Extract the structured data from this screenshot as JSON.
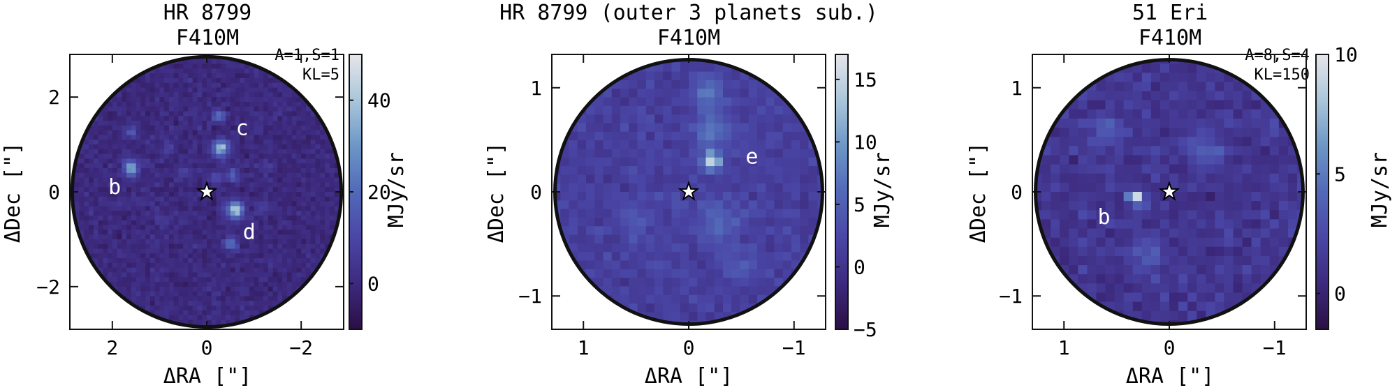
{
  "figure": {
    "panels": [
      {
        "title_line1": "HR 8799",
        "title_line2": "F410M",
        "annotation_lines": [
          "A=1,S=1",
          "KL=5"
        ],
        "xlabel": "ΔRA [\"]",
        "ylabel": "ΔDec [\"]",
        "colorbar_label": "MJy/sr",
        "planet_labels": [
          {
            "text": "b",
            "x": 1.95,
            "y": 0.1
          },
          {
            "text": "c",
            "x": -0.75,
            "y": 1.35
          },
          {
            "text": "d",
            "x": -0.9,
            "y": -0.85
          }
        ]
      },
      {
        "title_line1": "HR 8799 (outer 3 planets sub.)",
        "title_line2": "F410M",
        "annotation_lines": [],
        "xlabel": "ΔRA [\"]",
        "ylabel": "ΔDec [\"]",
        "colorbar_label": "MJy/sr",
        "planet_labels": [
          {
            "text": "e",
            "x": -0.6,
            "y": 0.34
          }
        ]
      },
      {
        "title_line1": "51 Eri",
        "title_line2": "F410M",
        "annotation_lines": [
          "A=8,S=4",
          "KL=150"
        ],
        "xlabel": "ΔRA [\"]",
        "ylabel": "ΔDec [\"]",
        "colorbar_label": "MJy/sr",
        "planet_labels": [
          {
            "text": "b",
            "x": 0.62,
            "y": -0.24
          }
        ]
      }
    ],
    "colors": {
      "cmap": [
        "#2a0f44",
        "#3d2a7e",
        "#4a46a6",
        "#5269b8",
        "#6d96c6",
        "#aac6da",
        "#e6e6ea"
      ],
      "background": "#3c2a7c",
      "star_fill": "#ffffff",
      "star_stroke": "#000000"
    }
  },
  "chart_data": [
    {
      "type": "heatmap",
      "title": "HR 8799 F410M",
      "xlabel": "ΔRA [\"]",
      "ylabel": "ΔDec [\"]",
      "xlim": [
        2.9,
        -2.9
      ],
      "ylim": [
        -2.9,
        2.9
      ],
      "xticks": [
        2,
        0,
        -2
      ],
      "xticklabels": [
        "2",
        "0",
        "−2"
      ],
      "yticks": [
        -2,
        0,
        2
      ],
      "yticklabels": [
        "−2",
        "0",
        "2"
      ],
      "x_inverted": true,
      "field_radius": 2.85,
      "colorbar": {
        "label": "MJy/sr",
        "range": [
          -10,
          50
        ],
        "ticks": [
          0,
          20,
          40
        ],
        "ticklabels": [
          "0",
          "20",
          "40"
        ]
      },
      "background_level": 0,
      "noise_level": 4,
      "seed": 11,
      "star": {
        "x": 0,
        "y": 0
      },
      "sources": [
        {
          "label": "b",
          "x": 1.6,
          "y": 0.5,
          "peak": 35,
          "sigma": 0.11
        },
        {
          "label": "c",
          "x": -0.3,
          "y": 0.92,
          "peak": 40,
          "sigma": 0.12
        },
        {
          "label": "d",
          "x": -0.6,
          "y": -0.38,
          "peak": 46,
          "sigma": 0.12
        },
        {
          "label": "",
          "x": -0.25,
          "y": 1.6,
          "peak": 22,
          "sigma": 0.09
        },
        {
          "label": "",
          "x": -0.55,
          "y": 0.35,
          "peak": 20,
          "sigma": 0.09
        },
        {
          "label": "",
          "x": -0.5,
          "y": -1.1,
          "peak": 22,
          "sigma": 0.1
        },
        {
          "label": "",
          "x": 1.6,
          "y": 1.25,
          "peak": 14,
          "sigma": 0.09
        },
        {
          "label": "",
          "x": -0.2,
          "y": 0.3,
          "peak": 14,
          "sigma": 0.09
        },
        {
          "label": "",
          "x": 0.5,
          "y": 0.4,
          "peak": 10,
          "sigma": 0.1
        },
        {
          "label": "",
          "x": -1.3,
          "y": 0.5,
          "peak": 8,
          "sigma": 0.1
        },
        {
          "label": "",
          "x": -1.2,
          "y": -0.3,
          "peak": 9,
          "sigma": 0.1
        },
        {
          "label": "",
          "x": 1.0,
          "y": -0.6,
          "peak": 7,
          "sigma": 0.1
        },
        {
          "label": "",
          "x": 0.8,
          "y": 0.9,
          "peak": 8,
          "sigma": 0.1
        }
      ]
    },
    {
      "type": "heatmap",
      "title": "HR 8799 (outer 3 planets sub.) F410M",
      "xlabel": "ΔRA [\"]",
      "ylabel": "ΔDec [\"]",
      "xlim": [
        1.3,
        -1.3
      ],
      "ylim": [
        -1.32,
        1.32
      ],
      "xticks": [
        1,
        0,
        -1
      ],
      "xticklabels": [
        "1",
        "0",
        "−1"
      ],
      "yticks": [
        -1,
        0,
        1
      ],
      "yticklabels": [
        "−1",
        "0",
        "1"
      ],
      "x_inverted": true,
      "field_radius": 1.27,
      "colorbar": {
        "label": "MJy/sr",
        "range": [
          -5,
          17
        ],
        "ticks": [
          -5,
          0,
          5,
          10,
          15
        ],
        "ticklabels": [
          "−5",
          "0",
          "5",
          "10",
          "15"
        ]
      },
      "background_level": 1.5,
      "noise_level": 1.6,
      "seed": 23,
      "star": {
        "x": 0,
        "y": 0
      },
      "sources": [
        {
          "label": "e",
          "x": -0.22,
          "y": 0.3,
          "peak": 15,
          "sigma": 0.06
        },
        {
          "label": "",
          "x": -0.2,
          "y": 0.95,
          "peak": 6,
          "sigma": 0.1
        },
        {
          "label": "",
          "x": -0.22,
          "y": 0.6,
          "peak": 5,
          "sigma": 0.12
        },
        {
          "label": "",
          "x": -0.3,
          "y": -0.3,
          "peak": 4,
          "sigma": 0.14
        },
        {
          "label": "",
          "x": -0.5,
          "y": -0.7,
          "peak": 3,
          "sigma": 0.12
        },
        {
          "label": "",
          "x": 0.5,
          "y": -0.25,
          "peak": 3,
          "sigma": 0.12
        }
      ]
    },
    {
      "type": "heatmap",
      "title": "51 Eri F410M",
      "xlabel": "ΔRA [\"]",
      "ylabel": "ΔDec [\"]",
      "xlim": [
        1.3,
        -1.3
      ],
      "ylim": [
        -1.32,
        1.32
      ],
      "xticks": [
        1,
        0,
        -1
      ],
      "xticklabels": [
        "1",
        "0",
        "−1"
      ],
      "yticks": [
        -1,
        0,
        1
      ],
      "yticklabels": [
        "−1",
        "0",
        "1"
      ],
      "x_inverted": true,
      "field_radius": 1.27,
      "colorbar": {
        "label": "MJy/sr",
        "range": [
          -1.5,
          10
        ],
        "ticks": [
          0,
          5,
          10
        ],
        "ticklabels": [
          "0",
          "5",
          "10"
        ]
      },
      "background_level": 1.3,
      "noise_level": 1.1,
      "seed": 37,
      "star": {
        "x": 0,
        "y": 0
      },
      "sources": [
        {
          "label": "b",
          "x": 0.32,
          "y": -0.06,
          "peak": 9,
          "sigma": 0.05
        },
        {
          "label": "",
          "x": 0.55,
          "y": 0.6,
          "peak": 2.5,
          "sigma": 0.1
        },
        {
          "label": "",
          "x": -0.35,
          "y": 0.4,
          "peak": 2.5,
          "sigma": 0.1
        },
        {
          "label": "",
          "x": 0.2,
          "y": -0.6,
          "peak": 2,
          "sigma": 0.1
        }
      ]
    }
  ]
}
